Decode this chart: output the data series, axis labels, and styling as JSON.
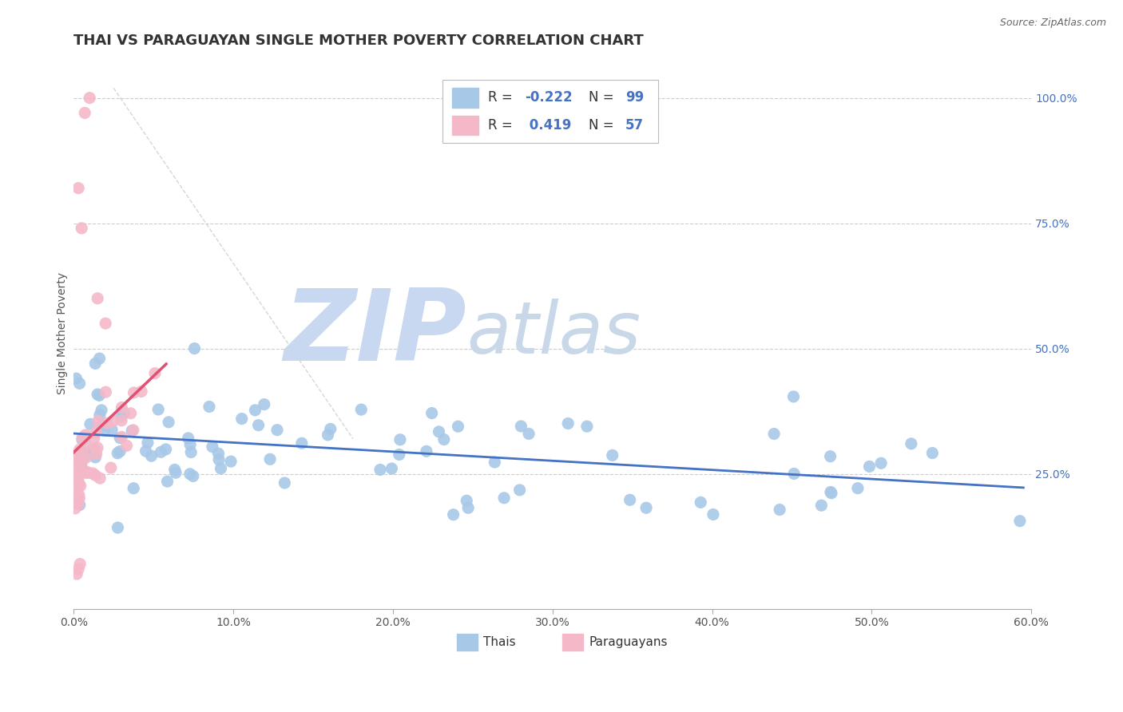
{
  "title": "THAI VS PARAGUAYAN SINGLE MOTHER POVERTY CORRELATION CHART",
  "source_text": "Source: ZipAtlas.com",
  "ylabel": "Single Mother Poverty",
  "xlim": [
    0.0,
    0.6
  ],
  "ylim": [
    -0.02,
    1.08
  ],
  "xtick_labels": [
    "0.0%",
    "10.0%",
    "20.0%",
    "30.0%",
    "40.0%",
    "50.0%",
    "60.0%"
  ],
  "xtick_values": [
    0.0,
    0.1,
    0.2,
    0.3,
    0.4,
    0.5,
    0.6
  ],
  "ytick_labels_right": [
    "25.0%",
    "50.0%",
    "75.0%",
    "100.0%"
  ],
  "ytick_values_right": [
    0.25,
    0.5,
    0.75,
    1.0
  ],
  "blue_color": "#a8c8e8",
  "pink_color": "#f4b8c8",
  "blue_line_color": "#4472c4",
  "pink_line_color": "#e05070",
  "diag_line_color": "#cccccc",
  "grid_color": "#cccccc",
  "watermark_zip_color": "#c8d8f0",
  "watermark_atlas_color": "#c8d8e8",
  "legend_R_color": "#4472c4",
  "legend_text_color": "#333333",
  "title_color": "#333333",
  "source_color": "#666666",
  "title_fontsize": 13,
  "axis_fontsize": 10,
  "tick_fontsize": 10,
  "legend_fontsize": 12,
  "scatter_size": 120
}
